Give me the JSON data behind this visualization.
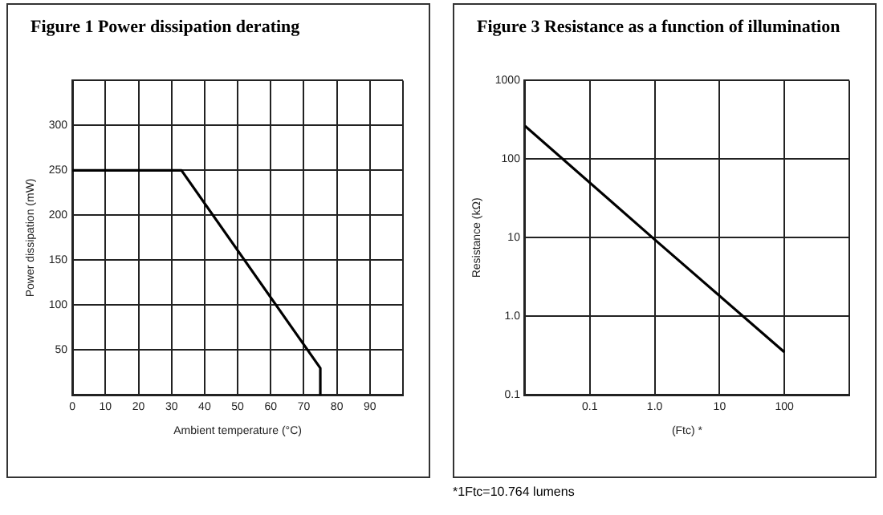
{
  "chart_data": [
    {
      "type": "line",
      "title": "Figure 1 Power dissipation derating",
      "xlabel": "Ambient temperature (°C)",
      "ylabel": "Power dissipation (mW)",
      "series": [
        {
          "color": "#000000",
          "x": [
            0,
            33,
            75,
            75
          ],
          "values": [
            250,
            250,
            30,
            0
          ]
        }
      ],
      "xlim": [
        0,
        100
      ],
      "xticks": [
        0,
        10,
        20,
        30,
        40,
        50,
        60,
        70,
        80,
        90,
        {
          "value": 100,
          "label": null
        }
      ],
      "ylim": [
        0,
        350
      ],
      "yticks": [
        {
          "value": 0,
          "label": null
        },
        50,
        100,
        150,
        200,
        250,
        300,
        {
          "value": 350,
          "label": null
        }
      ],
      "grid": true,
      "legend": false,
      "marker": "none",
      "line_style": "solid"
    },
    {
      "type": "line",
      "title": "Figure 3 Resistance as a function of illumination",
      "xlabel": "(Ftc) *",
      "ylabel": "Resistance (kΩ)",
      "log": "xy",
      "series": [
        {
          "color": "#000000",
          "x": [
            0.01,
            1,
            100
          ],
          "values": [
            265,
            9.5,
            0.35
          ]
        }
      ],
      "xlim": [
        0.01,
        1000
      ],
      "xticks": [
        {
          "value": 0.01,
          "label": null
        },
        0.1,
        {
          "value": 1,
          "label": "1.0"
        },
        10,
        100,
        {
          "value": 1000,
          "label": null
        }
      ],
      "ylim": [
        0.1,
        1000
      ],
      "yticks": [
        0.1,
        {
          "value": 1,
          "label": "1.0"
        },
        10,
        100,
        1000
      ],
      "grid": true,
      "legend": false,
      "marker": "none",
      "line_style": "solid",
      "annotations": [
        "*1Ftc=10.764 lumens"
      ]
    }
  ]
}
